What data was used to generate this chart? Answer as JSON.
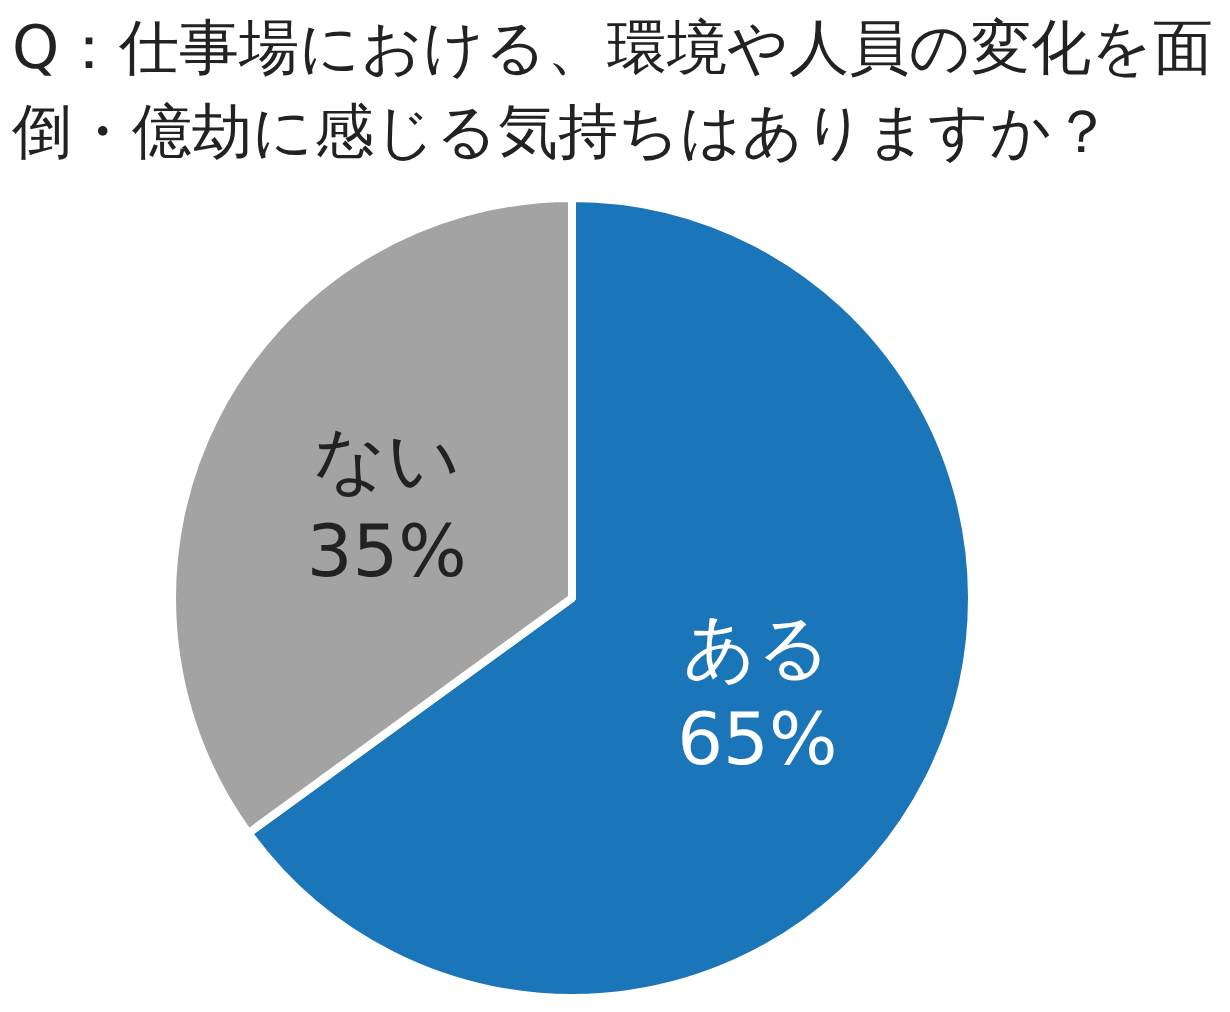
{
  "chart_data": {
    "type": "pie",
    "title": "Q：仕事場における、環境や人員の変化を面倒・億劫に感じる気持ちはありますか？",
    "categories": [
      "ある",
      "ない"
    ],
    "values": [
      65,
      35
    ],
    "colors": [
      "#1b75b9",
      "#a3a3a3"
    ],
    "value_labels": [
      "65%",
      "35%"
    ]
  }
}
